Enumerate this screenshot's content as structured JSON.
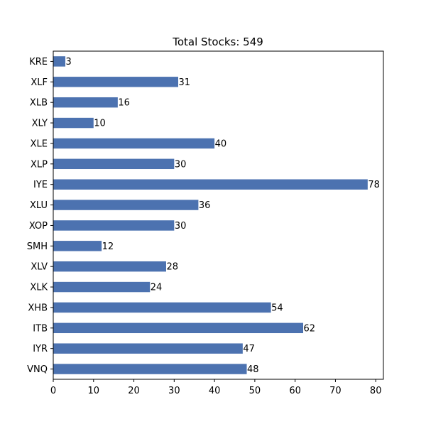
{
  "chart_data": {
    "type": "bar",
    "orientation": "horizontal",
    "title": "Total Stocks: 549",
    "xlabel": "",
    "ylabel": "",
    "categories": [
      "KRE",
      "XLF",
      "XLB",
      "XLY",
      "XLE",
      "XLP",
      "IYE",
      "XLU",
      "XOP",
      "SMH",
      "XLV",
      "XLK",
      "XHB",
      "ITB",
      "IYR",
      "VNQ"
    ],
    "values": [
      3,
      31,
      16,
      10,
      40,
      30,
      78,
      36,
      30,
      12,
      28,
      24,
      54,
      62,
      47,
      48
    ],
    "value_labels": [
      "3",
      "31",
      "16",
      "10",
      "40",
      "30",
      "78",
      "36",
      "30",
      "12",
      "28",
      "24",
      "54",
      "62",
      "47",
      "48"
    ],
    "xlim": [
      0,
      81.9
    ],
    "xticks": [
      0,
      10,
      20,
      30,
      40,
      50,
      60,
      70,
      80
    ],
    "xtick_labels": [
      "0",
      "10",
      "20",
      "30",
      "40",
      "50",
      "60",
      "70",
      "80"
    ],
    "bar_color": "#4c72b0",
    "grid": false,
    "legend": "none"
  }
}
